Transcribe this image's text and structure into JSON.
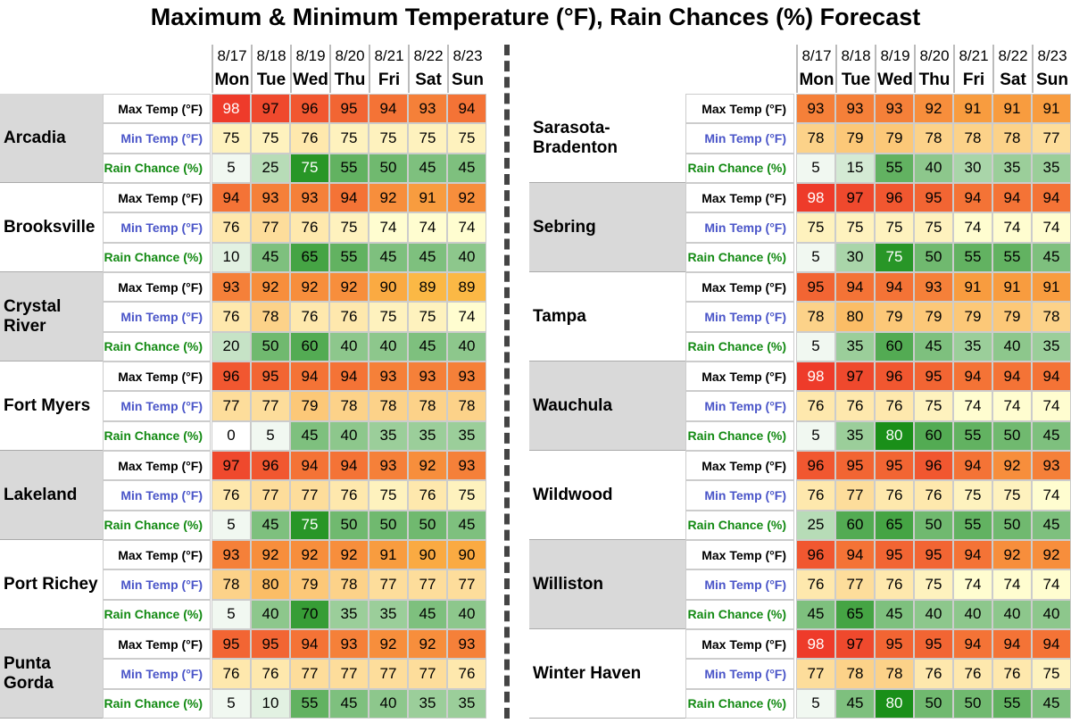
{
  "title": "Maximum & Minimum Temperature (°F), Rain Chances (%) Forecast",
  "colors": {
    "max_temp": [
      "#fbb845",
      "#ee3b2a"
    ],
    "min_temp": [
      "#fffdd0",
      "#fbbd66"
    ],
    "rain": [
      "#ffffff",
      "#1a8f19"
    ],
    "label_max": "#000000",
    "label_min": "#4a55c8",
    "label_rain": "#138a13"
  },
  "panels": [
    {
      "dates": [
        "8/17",
        "8/18",
        "8/19",
        "8/20",
        "8/21",
        "8/22",
        "8/23"
      ],
      "days": [
        "Mon",
        "Tue",
        "Wed",
        "Thu",
        "Fri",
        "Sat",
        "Sun"
      ],
      "cities": [
        {
          "name": "Arcadia",
          "rows": [
            {
              "label": "Max Temp (°F)",
              "values": [
                98,
                97,
                96,
                95,
                94,
                93,
                94
              ]
            },
            {
              "label": "Min Temp (°F)",
              "values": [
                75,
                75,
                76,
                75,
                75,
                75,
                75
              ]
            },
            {
              "label": "Rain Chance (%)",
              "values": [
                5,
                25,
                75,
                55,
                50,
                45,
                45
              ]
            }
          ]
        },
        {
          "name": "Brooksville",
          "rows": [
            {
              "label": "Max Temp (°F)",
              "values": [
                94,
                93,
                93,
                94,
                92,
                91,
                92
              ]
            },
            {
              "label": "Min Temp (°F)",
              "values": [
                76,
                77,
                76,
                75,
                74,
                74,
                74
              ]
            },
            {
              "label": "Rain Chance (%)",
              "values": [
                10,
                45,
                65,
                55,
                45,
                45,
                40
              ]
            }
          ]
        },
        {
          "name": "Crystal River",
          "rows": [
            {
              "label": "Max Temp (°F)",
              "values": [
                93,
                92,
                92,
                92,
                90,
                89,
                89
              ]
            },
            {
              "label": "Min Temp (°F)",
              "values": [
                76,
                78,
                76,
                76,
                75,
                75,
                74
              ]
            },
            {
              "label": "Rain Chance (%)",
              "values": [
                20,
                50,
                60,
                40,
                40,
                45,
                40
              ]
            }
          ]
        },
        {
          "name": "Fort Myers",
          "rows": [
            {
              "label": "Max Temp (°F)",
              "values": [
                96,
                95,
                94,
                94,
                93,
                93,
                93
              ]
            },
            {
              "label": "Min Temp (°F)",
              "values": [
                77,
                77,
                79,
                78,
                78,
                78,
                78
              ]
            },
            {
              "label": "Rain Chance (%)",
              "values": [
                0,
                5,
                45,
                40,
                35,
                35,
                35
              ]
            }
          ]
        },
        {
          "name": "Lakeland",
          "rows": [
            {
              "label": "Max Temp (°F)",
              "values": [
                97,
                96,
                94,
                94,
                93,
                92,
                93
              ]
            },
            {
              "label": "Min Temp (°F)",
              "values": [
                76,
                77,
                77,
                76,
                75,
                76,
                75
              ]
            },
            {
              "label": "Rain Chance (%)",
              "values": [
                5,
                45,
                75,
                50,
                50,
                50,
                45
              ]
            }
          ]
        },
        {
          "name": "Port Richey",
          "rows": [
            {
              "label": "Max Temp (°F)",
              "values": [
                93,
                92,
                92,
                92,
                91,
                90,
                90
              ]
            },
            {
              "label": "Min Temp (°F)",
              "values": [
                78,
                80,
                79,
                78,
                77,
                77,
                77
              ]
            },
            {
              "label": "Rain Chance (%)",
              "values": [
                5,
                40,
                70,
                35,
                35,
                45,
                40
              ]
            }
          ]
        },
        {
          "name": "Punta Gorda",
          "rows": [
            {
              "label": "Max Temp (°F)",
              "values": [
                95,
                95,
                94,
                93,
                92,
                92,
                93
              ]
            },
            {
              "label": "Min Temp (°F)",
              "values": [
                76,
                76,
                77,
                77,
                77,
                77,
                76
              ]
            },
            {
              "label": "Rain Chance (%)",
              "values": [
                5,
                10,
                55,
                45,
                40,
                35,
                35
              ]
            }
          ]
        }
      ]
    },
    {
      "dates": [
        "8/17",
        "8/18",
        "8/19",
        "8/20",
        "8/21",
        "8/22",
        "8/23"
      ],
      "days": [
        "Mon",
        "Tue",
        "Wed",
        "Thu",
        "Fri",
        "Sat",
        "Sun"
      ],
      "cities": [
        {
          "name": "Sarasota-Bradenton",
          "rows": [
            {
              "label": "Max Temp (°F)",
              "values": [
                93,
                93,
                93,
                92,
                91,
                91,
                91
              ]
            },
            {
              "label": "Min Temp (°F)",
              "values": [
                78,
                79,
                79,
                78,
                78,
                78,
                77
              ]
            },
            {
              "label": "Rain Chance (%)",
              "values": [
                5,
                15,
                55,
                40,
                30,
                35,
                35
              ]
            }
          ]
        },
        {
          "name": "Sebring",
          "rows": [
            {
              "label": "Max Temp (°F)",
              "values": [
                98,
                97,
                96,
                95,
                94,
                94,
                94
              ]
            },
            {
              "label": "Min Temp (°F)",
              "values": [
                75,
                75,
                75,
                75,
                74,
                74,
                74
              ]
            },
            {
              "label": "Rain Chance (%)",
              "values": [
                5,
                30,
                75,
                50,
                55,
                55,
                45
              ]
            }
          ]
        },
        {
          "name": "Tampa",
          "rows": [
            {
              "label": "Max Temp (°F)",
              "values": [
                95,
                94,
                94,
                93,
                91,
                91,
                91
              ]
            },
            {
              "label": "Min Temp (°F)",
              "values": [
                78,
                80,
                79,
                79,
                79,
                79,
                78
              ]
            },
            {
              "label": "Rain Chance (%)",
              "values": [
                5,
                35,
                60,
                45,
                35,
                40,
                35
              ]
            }
          ]
        },
        {
          "name": "Wauchula",
          "rows": [
            {
              "label": "Max Temp (°F)",
              "values": [
                98,
                97,
                96,
                95,
                94,
                94,
                94
              ]
            },
            {
              "label": "Min Temp (°F)",
              "values": [
                76,
                76,
                76,
                75,
                74,
                74,
                74
              ]
            },
            {
              "label": "Rain Chance (%)",
              "values": [
                5,
                35,
                80,
                60,
                55,
                50,
                45
              ]
            }
          ]
        },
        {
          "name": "Wildwood",
          "rows": [
            {
              "label": "Max Temp (°F)",
              "values": [
                96,
                95,
                95,
                96,
                94,
                92,
                93
              ]
            },
            {
              "label": "Min Temp (°F)",
              "values": [
                76,
                77,
                76,
                76,
                75,
                75,
                74
              ]
            },
            {
              "label": "Rain Chance (%)",
              "values": [
                25,
                60,
                65,
                50,
                55,
                50,
                45
              ]
            }
          ]
        },
        {
          "name": "Williston",
          "rows": [
            {
              "label": "Max Temp (°F)",
              "values": [
                96,
                94,
                95,
                95,
                94,
                92,
                92
              ]
            },
            {
              "label": "Min Temp (°F)",
              "values": [
                76,
                77,
                76,
                75,
                74,
                74,
                74
              ]
            },
            {
              "label": "Rain Chance (%)",
              "values": [
                45,
                65,
                45,
                40,
                40,
                40,
                40
              ]
            }
          ]
        },
        {
          "name": "Winter Haven",
          "rows": [
            {
              "label": "Max Temp (°F)",
              "values": [
                98,
                97,
                95,
                95,
                94,
                94,
                94
              ]
            },
            {
              "label": "Min Temp (°F)",
              "values": [
                77,
                78,
                78,
                76,
                76,
                76,
                75
              ]
            },
            {
              "label": "Rain Chance (%)",
              "values": [
                5,
                45,
                80,
                50,
                50,
                55,
                45
              ]
            }
          ]
        }
      ]
    }
  ]
}
